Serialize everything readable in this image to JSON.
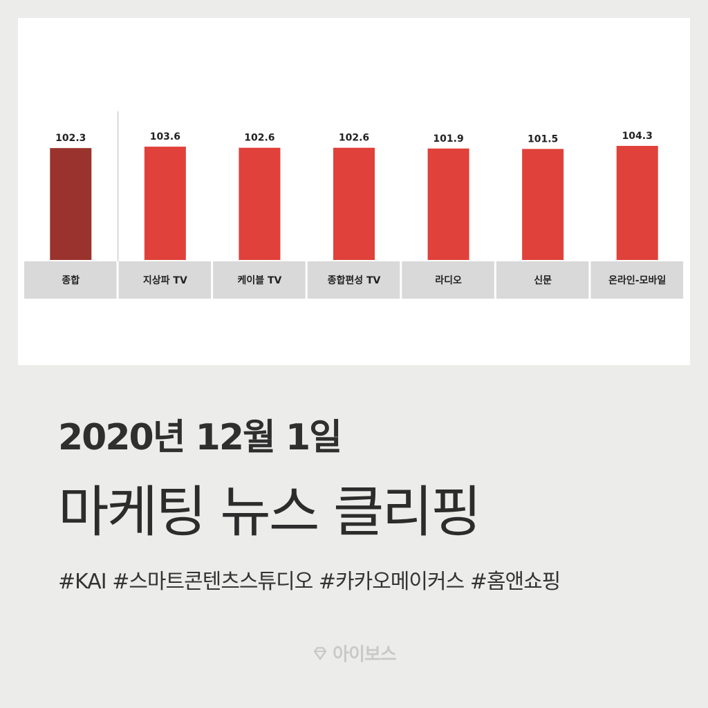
{
  "chart_data": {
    "type": "bar",
    "categories": [
      "종합",
      "지상파 TV",
      "케이블 TV",
      "종합편성 TV",
      "라디오",
      "신문",
      "온라인-모바일"
    ],
    "values": [
      102.3,
      103.6,
      102.6,
      102.6,
      101.9,
      101.5,
      104.3
    ],
    "value_labels": [
      "102.3",
      "103.6",
      "102.6",
      "102.6",
      "101.9",
      "101.5",
      "104.3"
    ],
    "colors": {
      "first_bar": "#9a332d",
      "bars": "#e0413a",
      "category_band": "#d9d9d9",
      "separator": "#cfcfcf"
    },
    "ylim": [
      0,
      104.3
    ]
  },
  "text": {
    "date_title": "2020년 12월 1일",
    "main_title": "마케팅 뉴스 클리핑",
    "hashtags": "#KAI #스마트콘텐츠스튜디오 #카카오메이커스 #홈앤쇼핑",
    "brand": "아이보스"
  }
}
